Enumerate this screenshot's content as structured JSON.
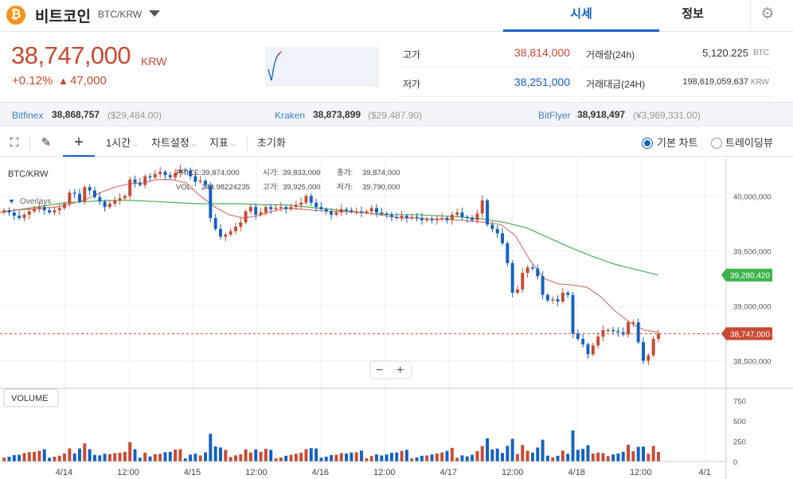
{
  "header": {
    "coin_name": "비트코인",
    "coin_icon": "bitcoin-icon",
    "pair": "BTC/KRW",
    "tabs": {
      "price": "시세",
      "info": "정보"
    }
  },
  "price": {
    "current": "38,747,000",
    "unit": "KRW",
    "change_pct": "+0.12%",
    "change_arrow": "▲",
    "change_val": "47,000"
  },
  "stats": {
    "high_label": "고가",
    "high": "38,814,000",
    "low_label": "저가",
    "low": "38,251,000",
    "vol_label": "거래량(24h)",
    "vol": "5,120.225",
    "vol_unit": "BTC",
    "amt_label": "거래대금(24H)",
    "amt": "198,619,059,637",
    "amt_unit": "KRW"
  },
  "exchanges": [
    {
      "name": "Bitfinex",
      "price": "38,868,757",
      "usd": "($29,484.00)"
    },
    {
      "name": "Kraken",
      "price": "38,873,899",
      "usd": "($29,487.90)"
    },
    {
      "name": "BitFlyer",
      "price": "38,918,497",
      "usd": "(¥3,969,331.00)"
    }
  ],
  "toolbar": {
    "interval": "1시간",
    "chart_settings": "차트설정",
    "indicator": "지표",
    "reset": "초기화",
    "mode_basic": "기본 차트",
    "mode_tradingview": "트레이딩뷰"
  },
  "chart_info": {
    "pair": "BTC/KRW",
    "overlays": "Overlays",
    "price_label": "PRICE:",
    "price": "39,874,000",
    "open_label": "시가:",
    "open": "39,833,000",
    "close_label": "종가:",
    "close": "39,874,000",
    "vol_label": "VOL:",
    "vol": "244.98224235",
    "high_label": "고가:",
    "high": "39,925,000",
    "low_label": "저가:",
    "low": "39,790,000",
    "volume_label": "VOLUME",
    "zoom_minus": "−",
    "zoom_plus": "+"
  },
  "chart_data": {
    "type": "candlestick",
    "price_axis": [
      "40,000,000",
      "39,500,000",
      "39,000,000",
      "38,500,000"
    ],
    "price_ticks": [
      40000000,
      39500000,
      39000000,
      38500000
    ],
    "ylim": [
      38250000,
      40350000
    ],
    "volume_axis": [
      "750",
      "500",
      "250",
      "0"
    ],
    "volume_ticks": [
      750,
      500,
      250,
      0
    ],
    "volume_lim": [
      0,
      880
    ],
    "x_labels": [
      "4/14",
      "12:00",
      "4/15",
      "12:00",
      "4/16",
      "12:00",
      "4/17",
      "12:00",
      "4/18",
      "12:00",
      "4/1"
    ],
    "x_label_hours": [
      12,
      24,
      36,
      48,
      60,
      72,
      84,
      96,
      108,
      120,
      132
    ],
    "current_price_label": "38,747,000",
    "current_price": 38747000,
    "ma_label": "39,280,420",
    "ma_value": 39280420,
    "colors": {
      "up": "#c84a31",
      "down": "#1261c4",
      "ma_short": "#e0746a",
      "ma_long": "#4caf50"
    },
    "candle_closes": [
      39870000,
      39850000,
      39820000,
      39800000,
      39830000,
      39860000,
      39880000,
      39900000,
      39870000,
      39850000,
      39870000,
      39890000,
      39930000,
      40030000,
      40020000,
      39950000,
      40080000,
      40050000,
      39990000,
      39950000,
      39900000,
      39930000,
      39960000,
      39980000,
      40000000,
      40150000,
      40120000,
      40100000,
      40180000,
      40170000,
      40200000,
      40220000,
      40190000,
      40170000,
      40210000,
      40240000,
      40230000,
      40180000,
      40130000,
      40140000,
      40100000,
      39800000,
      39700000,
      39630000,
      39650000,
      39680000,
      39720000,
      39760000,
      39860000,
      39900000,
      39830000,
      39850000,
      39900000,
      39880000,
      39890000,
      39900000,
      39880000,
      39900000,
      39920000,
      39940000,
      40000000,
      39940000,
      39900000,
      39880000,
      39860000,
      39830000,
      39850000,
      39880000,
      39870000,
      39860000,
      39860000,
      39850000,
      39860000,
      39890000,
      39850000,
      39840000,
      39830000,
      39810000,
      39800000,
      39820000,
      39800000,
      39810000,
      39800000,
      39780000,
      39790000,
      39780000,
      39790000,
      39800000,
      39780000,
      39830000,
      39850000,
      39810000,
      39800000,
      39780000,
      39840000,
      39960000,
      39740000,
      39700000,
      39660000,
      39570000,
      39390000,
      39120000,
      39150000,
      39300000,
      39350000,
      39340000,
      39270000,
      39100000,
      39050000,
      39060000,
      39040000,
      39120000,
      39100000,
      38750000,
      38700000,
      38650000,
      38560000,
      38640000,
      38720000,
      38780000,
      38780000,
      38770000,
      38760000,
      38740000,
      38850000,
      38850000,
      38670000,
      38500000,
      38550000,
      38700000,
      38747000
    ],
    "ma_short": [
      39850000,
      39870000,
      39880000,
      39890000,
      39900000,
      39930000,
      39970000,
      40030000,
      40080000,
      40110000,
      40120000,
      40150000,
      40150000,
      40120000,
      40000000,
      39900000,
      39830000,
      39800000,
      39820000,
      39860000,
      39890000,
      39880000,
      39870000,
      39860000,
      39860000,
      39850000,
      39840000,
      39820000,
      39800000,
      39800000,
      39790000,
      39790000,
      39780000,
      39770000,
      39760000,
      39740000,
      39640000,
      39420000,
      39250000,
      39200000,
      39190000,
      39170000,
      39080000,
      38950000,
      38850000,
      38780000,
      38760000
    ],
    "ma_long": [
      39850000,
      39880000,
      39910000,
      39940000,
      39950000,
      39960000,
      39960000,
      39950000,
      39940000,
      39930000,
      39930000,
      39930000,
      39920000,
      39920000,
      39900000,
      39880000,
      39860000,
      39840000,
      39830000,
      39830000,
      39820000,
      39810000,
      39790000,
      39760000,
      39710000,
      39620000,
      39530000,
      39450000,
      39380000,
      39330000,
      39280420
    ]
  }
}
